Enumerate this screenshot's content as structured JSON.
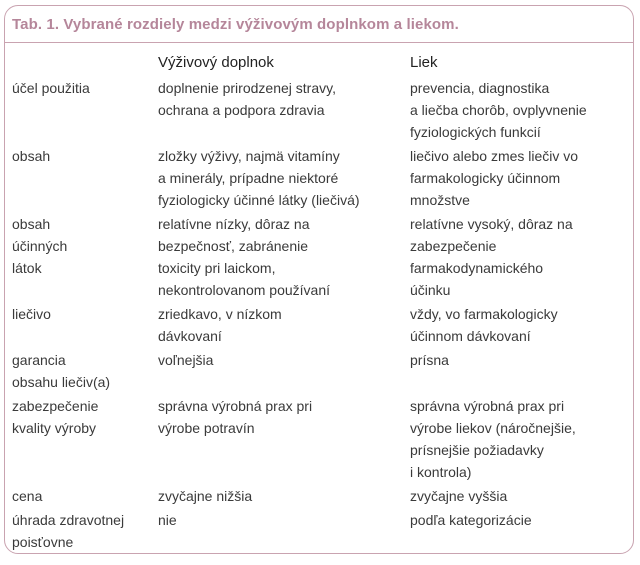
{
  "title": "Tab. 1. Vybrané rozdiely medzi výživovým doplnkom a liekom.",
  "columns": [
    "",
    "Výživový doplnok",
    "Liek"
  ],
  "rows": [
    [
      "účel použitia",
      "doplnenie prirodzenej stravy,\nochrana a podpora zdravia",
      "prevencia, diagnostika\na liečba chorôb, ovplyvnenie\nfyziologických funkcií"
    ],
    [
      "obsah",
      "zložky výživy, najmä vitamíny\na minerály, prípadne niektoré\nfyziologicky účinné látky (liečivá)",
      "liečivo alebo zmes liečiv vo\nfarmakologicky účinnom\nmnožstve"
    ],
    [
      "obsah\núčinných\nlátok",
      "relatívne nízky, dôraz na\nbezpečnosť, zabránenie\ntoxicity pri laickom,\nnekontrolovanom používaní",
      "relatívne vysoký, dôraz na\nzabezpečenie\nfarmakodynamického\núčinku"
    ],
    [
      "liečivo",
      "zriedkavo, v nízkom\ndávkovaní",
      "vždy, vo farmakologicky\núčinnom dávkovaní"
    ],
    [
      "garancia\nobsahu liečiv(a)",
      "voľnejšia",
      "prísna"
    ],
    [
      "zabezpečenie\nkvality výroby",
      "správna výrobná prax pri\nvýrobe potravín",
      "správna výrobná prax pri\nvýrobe liekov (náročnejšie,\nprísnejšie požiadavky\ni kontrola)"
    ],
    [
      "cena",
      "zvyčajne nižšia",
      "zvyčajne vyššia"
    ],
    [
      "úhrada zdravotnej\npoisťovne",
      "nie",
      "podľa kategorizácie"
    ]
  ],
  "colors": {
    "border": "#c9a3b0",
    "title": "#b5869a",
    "text": "#3a3a3a"
  }
}
